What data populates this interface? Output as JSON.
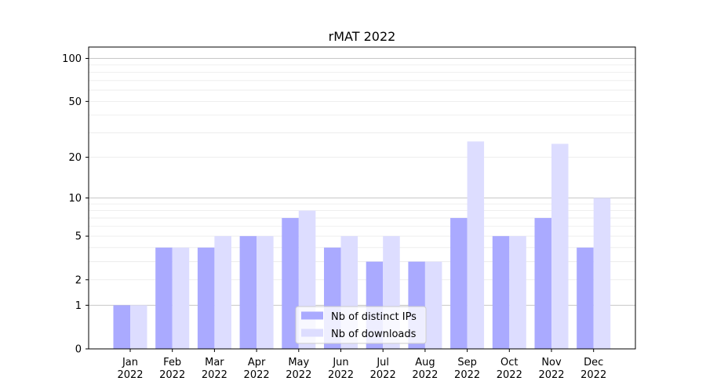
{
  "chart_data": {
    "type": "bar",
    "title": "rMAT 2022",
    "xlabel": "",
    "ylabel": "",
    "y_scale": "symlog",
    "ylim": [
      0,
      120
    ],
    "y_ticks": [
      0,
      1,
      2,
      5,
      10,
      20,
      50,
      100
    ],
    "grid": true,
    "legend_position": "lower-center",
    "categories": [
      "Jan\n2022",
      "Feb\n2022",
      "Mar\n2022",
      "Apr\n2022",
      "May\n2022",
      "Jun\n2022",
      "Jul\n2022",
      "Aug\n2022",
      "Sep\n2022",
      "Oct\n2022",
      "Nov\n2022",
      "Dec\n2022"
    ],
    "series": [
      {
        "name": "Nb of distinct IPs",
        "color": "#aaaaff",
        "values": [
          1,
          4,
          4,
          5,
          7,
          4,
          3,
          3,
          7,
          5,
          7,
          4
        ]
      },
      {
        "name": "Nb of downloads",
        "color": "#ddddff",
        "values": [
          1,
          4,
          5,
          5,
          8,
          5,
          5,
          3,
          26,
          5,
          25,
          10
        ]
      }
    ]
  }
}
